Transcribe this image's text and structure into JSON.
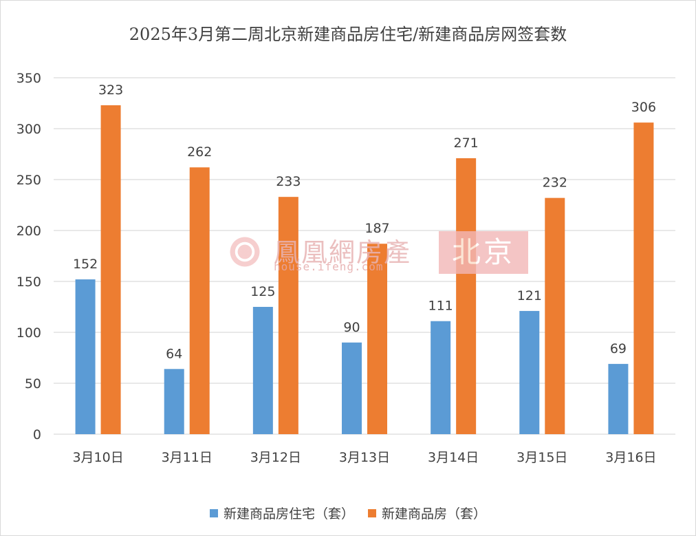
{
  "colors": {
    "series_residential": "#5b9bd5",
    "series_all": "#ed7d31",
    "grid": "#d9d9d9",
    "text": "#404040",
    "watermark": "#f2b7b7"
  },
  "watermark": {
    "cn_text": "鳳凰網房產",
    "url": "house.ifeng.com",
    "city": "北京",
    "logo_icon": "ifeng-logo-icon"
  },
  "chart_data": {
    "type": "bar",
    "title": "2025年3月第二周北京新建商品房住宅/新建商品房网签套数",
    "xlabel": "",
    "ylabel": "",
    "categories": [
      "3月10日",
      "3月11日",
      "3月12日",
      "3月13日",
      "3月14日",
      "3月15日",
      "3月16日"
    ],
    "series": [
      {
        "name": "新建商品房住宅（套）",
        "values": [
          152,
          64,
          125,
          90,
          111,
          121,
          69
        ]
      },
      {
        "name": "新建商品房（套）",
        "values": [
          323,
          262,
          233,
          187,
          271,
          232,
          306
        ]
      }
    ],
    "ylim": [
      0,
      350
    ],
    "yticks": [
      0,
      50,
      100,
      150,
      200,
      250,
      300,
      350
    ],
    "grid": true,
    "data_labels": true,
    "legend_position": "bottom"
  }
}
